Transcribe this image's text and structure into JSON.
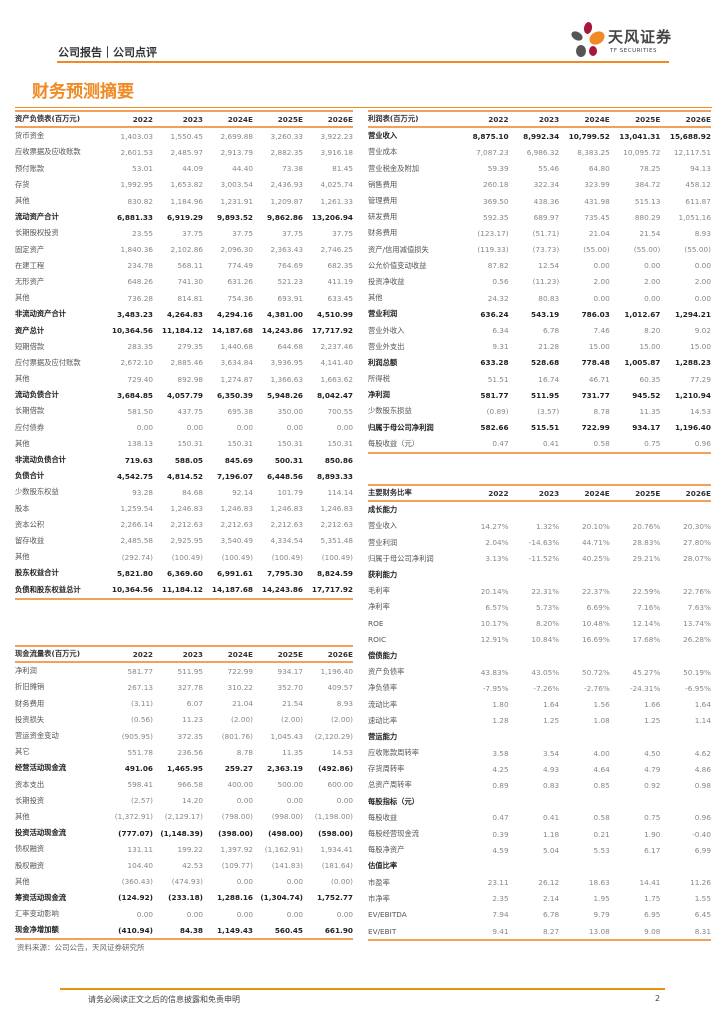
{
  "header": {
    "category": "公司报告｜公司点评",
    "logo_cn": "天风证券",
    "logo_en": "TF SECURITIES"
  },
  "title": "财务预测摘要",
  "colors": {
    "accent": "#f08a24"
  },
  "balance_sheet": {
    "columns": [
      "资产负债表(百万元)",
      "2022",
      "2023",
      "2024E",
      "2025E",
      "2026E"
    ],
    "rows": [
      {
        "label": "货币资金",
        "values": [
          "1,403.03",
          "1,550.45",
          "2,699.88",
          "3,260.33",
          "3,922.23"
        ]
      },
      {
        "label": "应收票据及应收账款",
        "values": [
          "2,601.53",
          "2,485.97",
          "2,913.79",
          "2,882.35",
          "3,916.18"
        ]
      },
      {
        "label": "预付账款",
        "values": [
          "53.01",
          "44.09",
          "44.40",
          "73.38",
          "81.45"
        ]
      },
      {
        "label": "存货",
        "values": [
          "1,992.95",
          "1,653.82",
          "3,003.54",
          "2,436.93",
          "4,025.74"
        ]
      },
      {
        "label": "其他",
        "values": [
          "830.82",
          "1,184.96",
          "1,231.91",
          "1,209.87",
          "1,261.33"
        ]
      },
      {
        "label": "流动资产合计",
        "bold": true,
        "values": [
          "6,881.33",
          "6,919.29",
          "9,893.52",
          "9,862.86",
          "13,206.94"
        ]
      },
      {
        "label": "长期股权投资",
        "values": [
          "23.55",
          "37.75",
          "37.75",
          "37.75",
          "37.75"
        ]
      },
      {
        "label": "固定资产",
        "values": [
          "1,840.36",
          "2,102.86",
          "2,096.30",
          "2,363.43",
          "2,746.25"
        ]
      },
      {
        "label": "在建工程",
        "values": [
          "234.78",
          "568.11",
          "774.49",
          "764.69",
          "682.35"
        ]
      },
      {
        "label": "无形资产",
        "values": [
          "648.26",
          "741.30",
          "631.26",
          "521.23",
          "411.19"
        ]
      },
      {
        "label": "其他",
        "values": [
          "736.28",
          "814.81",
          "754.36",
          "693.91",
          "633.45"
        ]
      },
      {
        "label": "非流动资产合计",
        "bold": true,
        "values": [
          "3,483.23",
          "4,264.83",
          "4,294.16",
          "4,381.00",
          "4,510.99"
        ]
      },
      {
        "label": "资产总计",
        "bold": true,
        "values": [
          "10,364.56",
          "11,184.12",
          "14,187.68",
          "14,243.86",
          "17,717.92"
        ]
      },
      {
        "label": "短期借款",
        "values": [
          "283.35",
          "279.35",
          "1,440.68",
          "644.68",
          "2,237.46"
        ]
      },
      {
        "label": "应付票据及应付账款",
        "values": [
          "2,672.10",
          "2,885.46",
          "3,634.84",
          "3,936.95",
          "4,141.40"
        ]
      },
      {
        "label": "其他",
        "values": [
          "729.40",
          "892.98",
          "1,274.87",
          "1,366.63",
          "1,663.62"
        ]
      },
      {
        "label": "流动负债合计",
        "bold": true,
        "values": [
          "3,684.85",
          "4,057.79",
          "6,350.39",
          "5,948.26",
          "8,042.47"
        ]
      },
      {
        "label": "长期借款",
        "values": [
          "581.50",
          "437.75",
          "695.38",
          "350.00",
          "700.55"
        ]
      },
      {
        "label": "应付债券",
        "values": [
          "0.00",
          "0.00",
          "0.00",
          "0.00",
          "0.00"
        ]
      },
      {
        "label": "其他",
        "values": [
          "138.13",
          "150.31",
          "150.31",
          "150.31",
          "150.31"
        ]
      },
      {
        "label": "非流动负债合计",
        "bold": true,
        "values": [
          "719.63",
          "588.05",
          "845.69",
          "500.31",
          "850.86"
        ]
      },
      {
        "label": "负债合计",
        "bold": true,
        "values": [
          "4,542.75",
          "4,814.52",
          "7,196.07",
          "6,448.56",
          "8,893.33"
        ]
      },
      {
        "label": "少数股东权益",
        "values": [
          "93.28",
          "84.68",
          "92.14",
          "101.79",
          "114.14"
        ]
      },
      {
        "label": "股本",
        "values": [
          "1,259.54",
          "1,246.83",
          "1,246.83",
          "1,246.83",
          "1,246.83"
        ]
      },
      {
        "label": "资本公积",
        "values": [
          "2,266.14",
          "2,212.63",
          "2,212.63",
          "2,212.63",
          "2,212.63"
        ]
      },
      {
        "label": "留存收益",
        "values": [
          "2,485.58",
          "2,925.95",
          "3,540.49",
          "4,334.54",
          "5,351.48"
        ]
      },
      {
        "label": "其他",
        "values": [
          "(292.74)",
          "(100.49)",
          "(100.49)",
          "(100.49)",
          "(100.49)"
        ]
      },
      {
        "label": "股东权益合计",
        "bold": true,
        "values": [
          "5,821.80",
          "6,369.60",
          "6,991.61",
          "7,795.30",
          "8,824.59"
        ]
      },
      {
        "label": "负债和股东权益总计",
        "bold": true,
        "values": [
          "10,364.56",
          "11,184.12",
          "14,187.68",
          "14,243.86",
          "17,717.92"
        ]
      }
    ]
  },
  "income_statement": {
    "columns": [
      "利润表(百万元)",
      "2022",
      "2023",
      "2024E",
      "2025E",
      "2026E"
    ],
    "rows": [
      {
        "label": "营业收入",
        "bold": true,
        "values": [
          "8,875.10",
          "8,992.34",
          "10,799.52",
          "13,041.31",
          "15,688.92"
        ]
      },
      {
        "label": "营业成本",
        "values": [
          "7,087.23",
          "6,986.32",
          "8,383.25",
          "10,095.72",
          "12,117.51"
        ]
      },
      {
        "label": "营业税金及附加",
        "values": [
          "59.39",
          "55.46",
          "64.80",
          "78.25",
          "94.13"
        ]
      },
      {
        "label": "销售费用",
        "values": [
          "260.18",
          "322.34",
          "323.99",
          "384.72",
          "458.12"
        ]
      },
      {
        "label": "管理费用",
        "values": [
          "369.50",
          "438.36",
          "431.98",
          "515.13",
          "611.87"
        ]
      },
      {
        "label": "研发费用",
        "values": [
          "592.35",
          "689.97",
          "735.45",
          "880.29",
          "1,051.16"
        ]
      },
      {
        "label": "财务费用",
        "values": [
          "(123.17)",
          "(51.71)",
          "21.04",
          "21.54",
          "8.93"
        ]
      },
      {
        "label": "资产/信用减值损失",
        "values": [
          "(119.33)",
          "(73.73)",
          "(55.00)",
          "(55.00)",
          "(55.00)"
        ]
      },
      {
        "label": "公允价值变动收益",
        "values": [
          "87.82",
          "12.54",
          "0.00",
          "0.00",
          "0.00"
        ]
      },
      {
        "label": "投资净收益",
        "values": [
          "0.56",
          "(11.23)",
          "2.00",
          "2.00",
          "2.00"
        ]
      },
      {
        "label": "其他",
        "values": [
          "24.32",
          "80.83",
          "0.00",
          "0.00",
          "0.00"
        ]
      },
      {
        "label": "营业利润",
        "bold": true,
        "values": [
          "636.24",
          "543.19",
          "786.03",
          "1,012.67",
          "1,294.21"
        ]
      },
      {
        "label": "营业外收入",
        "values": [
          "6.34",
          "6.78",
          "7.46",
          "8.20",
          "9.02"
        ]
      },
      {
        "label": "营业外支出",
        "values": [
          "9.31",
          "21.28",
          "15.00",
          "15.00",
          "15.00"
        ]
      },
      {
        "label": "利润总额",
        "bold": true,
        "values": [
          "633.28",
          "528.68",
          "778.48",
          "1,005.87",
          "1,288.23"
        ]
      },
      {
        "label": "所得税",
        "values": [
          "51.51",
          "16.74",
          "46.71",
          "60.35",
          "77.29"
        ]
      },
      {
        "label": "净利润",
        "bold": true,
        "values": [
          "581.77",
          "511.95",
          "731.77",
          "945.52",
          "1,210.94"
        ]
      },
      {
        "label": "少数股东损益",
        "values": [
          "(0.89)",
          "(3.57)",
          "8.78",
          "11.35",
          "14.53"
        ]
      },
      {
        "label": "归属于母公司净利润",
        "bold": true,
        "values": [
          "582.66",
          "515.51",
          "722.99",
          "934.17",
          "1,196.40"
        ]
      },
      {
        "label": "每股收益（元）",
        "values": [
          "0.47",
          "0.41",
          "0.58",
          "0.75",
          "0.96"
        ]
      }
    ]
  },
  "ratios": {
    "columns": [
      "主要财务比率",
      "2022",
      "2023",
      "2024E",
      "2025E",
      "2026E"
    ],
    "rows": [
      {
        "label": "成长能力",
        "bold": true,
        "values": []
      },
      {
        "label": "营业收入",
        "values": [
          "14.27%",
          "1.32%",
          "20.10%",
          "20.76%",
          "20.30%"
        ]
      },
      {
        "label": "营业利润",
        "values": [
          "2.04%",
          "-14.63%",
          "44.71%",
          "28.83%",
          "27.80%"
        ]
      },
      {
        "label": "归属于母公司净利润",
        "values": [
          "3.13%",
          "-11.52%",
          "40.25%",
          "29.21%",
          "28.07%"
        ]
      },
      {
        "label": "获利能力",
        "bold": true,
        "values": []
      },
      {
        "label": "毛利率",
        "values": [
          "20.14%",
          "22.31%",
          "22.37%",
          "22.59%",
          "22.76%"
        ]
      },
      {
        "label": "净利率",
        "values": [
          "6.57%",
          "5.73%",
          "6.69%",
          "7.16%",
          "7.63%"
        ]
      },
      {
        "label": "ROE",
        "values": [
          "10.17%",
          "8.20%",
          "10.48%",
          "12.14%",
          "13.74%"
        ]
      },
      {
        "label": "ROIC",
        "values": [
          "12.91%",
          "10.84%",
          "16.69%",
          "17.68%",
          "26.28%"
        ]
      },
      {
        "label": "偿债能力",
        "bold": true,
        "values": []
      },
      {
        "label": "资产负债率",
        "values": [
          "43.83%",
          "43.05%",
          "50.72%",
          "45.27%",
          "50.19%"
        ]
      },
      {
        "label": "净负债率",
        "values": [
          "-7.95%",
          "-7.26%",
          "-2.76%",
          "-24.31%",
          "-6.95%"
        ]
      },
      {
        "label": "流动比率",
        "values": [
          "1.80",
          "1.64",
          "1.56",
          "1.66",
          "1.64"
        ]
      },
      {
        "label": "速动比率",
        "values": [
          "1.28",
          "1.25",
          "1.08",
          "1.25",
          "1.14"
        ]
      },
      {
        "label": "营运能力",
        "bold": true,
        "values": []
      },
      {
        "label": "应收账款周转率",
        "values": [
          "3.58",
          "3.54",
          "4.00",
          "4.50",
          "4.62"
        ]
      },
      {
        "label": "存货周转率",
        "values": [
          "4.25",
          "4.93",
          "4.64",
          "4.79",
          "4.86"
        ]
      },
      {
        "label": "总资产周转率",
        "values": [
          "0.89",
          "0.83",
          "0.85",
          "0.92",
          "0.98"
        ]
      },
      {
        "label": "每股指标（元）",
        "bold": true,
        "values": []
      },
      {
        "label": "每股收益",
        "values": [
          "0.47",
          "0.41",
          "0.58",
          "0.75",
          "0.96"
        ]
      },
      {
        "label": "每股经营现金流",
        "values": [
          "0.39",
          "1.18",
          "0.21",
          "1.90",
          "-0.40"
        ]
      },
      {
        "label": "每股净资产",
        "values": [
          "4.59",
          "5.04",
          "5.53",
          "6.17",
          "6.99"
        ]
      },
      {
        "label": "估值比率",
        "bold": true,
        "values": []
      },
      {
        "label": "市盈率",
        "values": [
          "23.11",
          "26.12",
          "18.63",
          "14.41",
          "11.26"
        ]
      },
      {
        "label": "市净率",
        "values": [
          "2.35",
          "2.14",
          "1.95",
          "1.75",
          "1.55"
        ]
      },
      {
        "label": "EV/EBITDA",
        "values": [
          "7.94",
          "6.78",
          "9.79",
          "6.95",
          "6.45"
        ]
      },
      {
        "label": "EV/EBIT",
        "values": [
          "9.41",
          "8.27",
          "13.08",
          "9.08",
          "8.31"
        ]
      }
    ]
  },
  "cash_flow": {
    "columns": [
      "现金流量表(百万元)",
      "2022",
      "2023",
      "2024E",
      "2025E",
      "2026E"
    ],
    "rows": [
      {
        "label": "净利润",
        "values": [
          "581.77",
          "511.95",
          "722.99",
          "934.17",
          "1,196.40"
        ]
      },
      {
        "label": "折旧摊销",
        "values": [
          "267.13",
          "327.78",
          "310.22",
          "352.70",
          "409.57"
        ]
      },
      {
        "label": "财务费用",
        "values": [
          "(3.11)",
          "6.07",
          "21.04",
          "21.54",
          "8.93"
        ]
      },
      {
        "label": "投资损失",
        "values": [
          "(0.56)",
          "11.23",
          "(2.00)",
          "(2.00)",
          "(2.00)"
        ]
      },
      {
        "label": "营运资金变动",
        "values": [
          "(905.95)",
          "372.35",
          "(801.76)",
          "1,045.43",
          "(2,120.29)"
        ]
      },
      {
        "label": "其它",
        "values": [
          "551.78",
          "236.56",
          "8.78",
          "11.35",
          "14.53"
        ]
      },
      {
        "label": "经营活动现金流",
        "bold": true,
        "values": [
          "491.06",
          "1,465.95",
          "259.27",
          "2,363.19",
          "(492.86)"
        ]
      },
      {
        "label": "资本支出",
        "values": [
          "598.41",
          "966.58",
          "400.00",
          "500.00",
          "600.00"
        ]
      },
      {
        "label": "长期投资",
        "values": [
          "(2.57)",
          "14.20",
          "0.00",
          "0.00",
          "0.00"
        ]
      },
      {
        "label": "其他",
        "values": [
          "(1,372.91)",
          "(2,129.17)",
          "(798.00)",
          "(998.00)",
          "(1,198.00)"
        ]
      },
      {
        "label": "投资活动现金流",
        "bold": true,
        "values": [
          "(777.07)",
          "(1,148.39)",
          "(398.00)",
          "(498.00)",
          "(598.00)"
        ]
      },
      {
        "label": "债权融资",
        "values": [
          "131.11",
          "199.22",
          "1,397.92",
          "(1,162.91)",
          "1,934.41"
        ]
      },
      {
        "label": "股权融资",
        "values": [
          "104.40",
          "42.53",
          "(109.77)",
          "(141.83)",
          "(181.64)"
        ]
      },
      {
        "label": "其他",
        "values": [
          "(360.43)",
          "(474.93)",
          "0.00",
          "0.00",
          "(0.00)"
        ]
      },
      {
        "label": "筹资活动现金流",
        "bold": true,
        "values": [
          "(124.92)",
          "(233.18)",
          "1,288.16",
          "(1,304.74)",
          "1,752.77"
        ]
      },
      {
        "label": "汇率变动影响",
        "values": [
          "0.00",
          "0.00",
          "0.00",
          "0.00",
          "0.00"
        ]
      },
      {
        "label": "现金净增加额",
        "bold": true,
        "values": [
          "(410.94)",
          "84.38",
          "1,149.43",
          "560.45",
          "661.90"
        ]
      }
    ]
  },
  "source": "资料来源：公司公告，天风证券研究所",
  "footer": {
    "disclaimer": "请务必阅读正文之后的信息披露和免责申明",
    "page": "2"
  }
}
